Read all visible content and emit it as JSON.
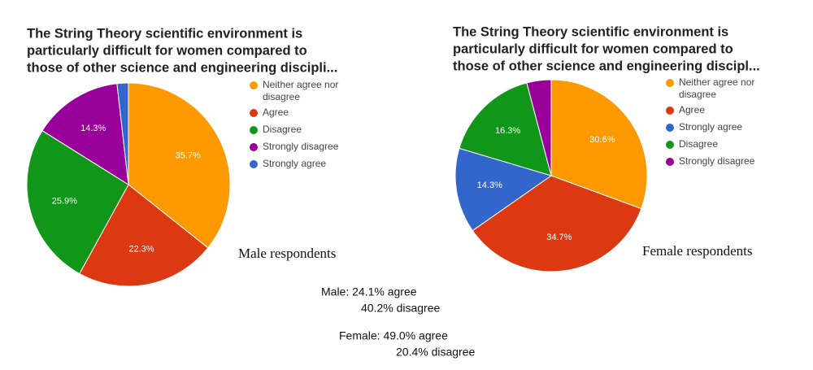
{
  "chart_data": [
    {
      "type": "pie",
      "title": [
        "The String Theory scientific environment is",
        "particularly difficult for women compared to",
        "those of other science and engineering discipli..."
      ],
      "categories": [
        "Neither agree nor disagree",
        "Agree",
        "Disagree",
        "Strongly disagree",
        "Strongly agree"
      ],
      "values": [
        35.7,
        22.3,
        25.9,
        14.3,
        1.8
      ],
      "value_labels": [
        "35.7%",
        "22.3%",
        "25.9%",
        "14.3%",
        null
      ],
      "colors": [
        "#ff9900",
        "#dc3912",
        "#109618",
        "#990099",
        "#3366cc"
      ],
      "caption": "Male respondents"
    },
    {
      "type": "pie",
      "title": [
        "The String Theory scientific environment is",
        "particularly difficult for women compared to",
        "those of other science and engineering discipl..."
      ],
      "categories": [
        "Neither agree nor disagree",
        "Agree",
        "Strongly agree",
        "Disagree",
        "Strongly disagree"
      ],
      "values": [
        30.6,
        34.7,
        14.3,
        16.3,
        4.1
      ],
      "value_labels": [
        "30.6%",
        "34.7%",
        "14.3%",
        "16.3%",
        null
      ],
      "colors": [
        "#ff9900",
        "#dc3912",
        "#3366cc",
        "#109618",
        "#990099"
      ],
      "caption": "Female respondents"
    }
  ],
  "summary": [
    "Male: 24.1% agree",
    "40.2% disagree",
    "Female: 49.0% agree",
    "20.4% disagree"
  ]
}
